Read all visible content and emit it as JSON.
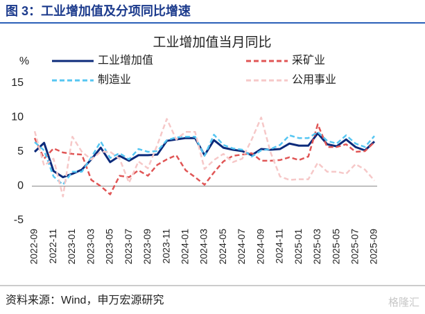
{
  "header": {
    "title": "图 3：工业增加值及分项同比增速"
  },
  "chart_data": {
    "type": "line",
    "title": "工业增加值当月同比",
    "y_label": "%",
    "categories": [
      "2022-09",
      null,
      "2022-11",
      null,
      "2023-01",
      null,
      "2023-03",
      null,
      "2023-05",
      null,
      "2023-07",
      null,
      "2023-09",
      null,
      "2023-11",
      null,
      "2024-01",
      null,
      "2024-03",
      null,
      "2024-05",
      null,
      "2024-07",
      null,
      "2024-09",
      null,
      "2024-11",
      null,
      "2025-01",
      null,
      "2025-03",
      null,
      "2025-05",
      null,
      "2025-07",
      null,
      "2025-09"
    ],
    "series": [
      {
        "name": "工业增加值",
        "color": "#0b2a7a",
        "dash": false,
        "values": [
          5.0,
          6.3,
          2.2,
          1.3,
          1.8,
          2.4,
          3.9,
          5.6,
          3.5,
          4.4,
          3.7,
          4.5,
          4.5,
          4.6,
          6.6,
          6.8,
          7.0,
          7.0,
          4.5,
          6.7,
          5.6,
          5.3,
          5.1,
          4.5,
          5.4,
          5.3,
          5.4,
          6.2,
          5.9,
          5.9,
          7.7,
          6.1,
          5.8,
          6.8,
          5.7,
          5.2,
          6.5
        ]
      },
      {
        "name": "采矿业",
        "color": "#e05555",
        "dash": true,
        "values": [
          7.0,
          4.0,
          5.5,
          4.9,
          4.7,
          4.6,
          0.9,
          0.0,
          -1.2,
          1.5,
          1.3,
          2.3,
          1.5,
          3.1,
          3.9,
          4.5,
          2.3,
          1.3,
          0.2,
          2.0,
          3.6,
          4.4,
          4.6,
          4.8,
          3.7,
          3.7,
          3.8,
          4.2,
          3.8,
          4.3,
          9.0,
          5.7,
          5.7,
          6.1,
          5.0,
          5.1,
          6.4
        ]
      },
      {
        "name": "制造业",
        "color": "#56c6f2",
        "dash": true,
        "values": [
          6.4,
          5.2,
          1.4,
          0.2,
          2.1,
          2.1,
          4.2,
          6.5,
          4.1,
          4.8,
          3.9,
          5.4,
          5.0,
          5.1,
          6.7,
          7.1,
          7.2,
          7.2,
          4.4,
          7.5,
          6.0,
          5.5,
          5.3,
          4.3,
          5.2,
          5.4,
          6.0,
          7.4,
          7.0,
          7.0,
          7.9,
          6.6,
          6.2,
          7.4,
          6.2,
          5.7,
          7.3
        ]
      },
      {
        "name": "公用事业",
        "color": "#f6c8c8",
        "dash": true,
        "values": [
          8.0,
          3.0,
          4.0,
          -1.5,
          7.2,
          5.0,
          3.9,
          5.0,
          5.0,
          4.0,
          0.5,
          3.6,
          2.6,
          6.0,
          9.8,
          6.8,
          7.9,
          7.9,
          2.5,
          3.8,
          4.7,
          3.5,
          4.0,
          6.8,
          10.0,
          4.9,
          1.4,
          0.9,
          1.0,
          1.0,
          3.4,
          2.1,
          2.1,
          1.8,
          3.2,
          2.4,
          0.8
        ]
      }
    ],
    "ylim": [
      -5,
      15
    ],
    "yticks": [
      15,
      10,
      5,
      0,
      -5
    ],
    "grid": false
  },
  "footer": {
    "source": "资料来源：Wind，申万宏源研究",
    "watermark": "格隆汇"
  }
}
